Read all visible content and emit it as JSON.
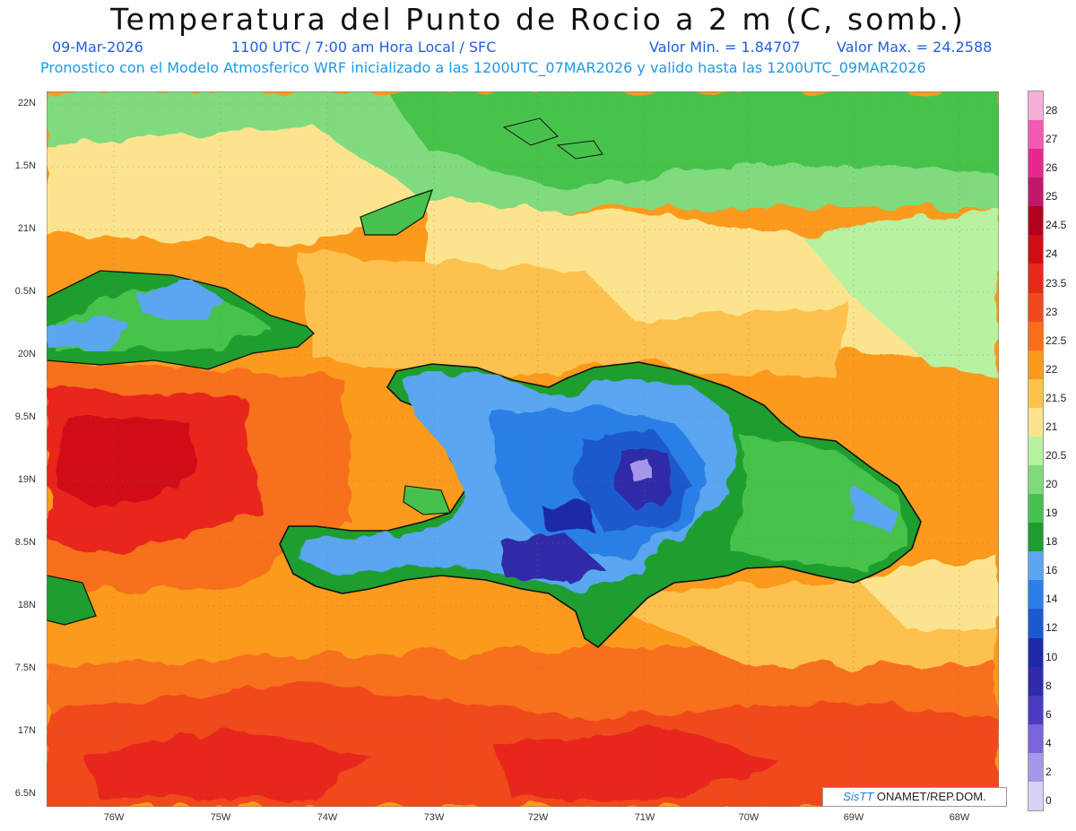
{
  "header": {
    "title": "Temperatura del Punto de Rocio a 2 m (C, somb.)",
    "date": "09-Mar-2026",
    "time": "1100 UTC / 7:00 am Hora Local / SFC",
    "valmin": "Valor Min. = 1.84707",
    "valmax": "Valor Max. = 24.2588",
    "model": "Pronostico con el Modelo Atmosferico WRF inicializado a las 1200UTC_07MAR2026 y valido hasta las  1200UTC_09MAR2026"
  },
  "axes": {
    "lat_labels": [
      "22N",
      "1.5N",
      "21N",
      "0.5N",
      "20N",
      "9.5N",
      "19N",
      "8.5N",
      "18N",
      "7.5N",
      "17N",
      "6.5N"
    ],
    "lon_labels": [
      "76W",
      "75W",
      "74W",
      "73W",
      "72W",
      "71W",
      "70W",
      "69W",
      "68W"
    ]
  },
  "colorbar": {
    "labels": [
      "28",
      "27",
      "26",
      "25",
      "24.5",
      "24",
      "23.5",
      "23",
      "22.5",
      "22",
      "21.5",
      "21",
      "20.5",
      "20",
      "19",
      "18",
      "16",
      "14",
      "12",
      "10",
      "8",
      "6",
      "4",
      "2",
      "0"
    ],
    "colors": [
      "#f5b0d8",
      "#f25bb4",
      "#e4288e",
      "#c0186a",
      "#b0001e",
      "#d00d14",
      "#e8281a",
      "#f04a1e",
      "#f76f1c",
      "#fb9a1c",
      "#fcc24e",
      "#fce48e",
      "#b8f2a0",
      "#7fdb7e",
      "#46c24c",
      "#1e9e2e",
      "#5aa6f0",
      "#2c7fe6",
      "#1a5acc",
      "#1c2aa6",
      "#2f2aa8",
      "#4b3cc0",
      "#7a66da",
      "#a797ea",
      "#d6d2f4"
    ]
  },
  "credit": {
    "brand": "SisTT",
    "text": " ONAMET/REP.DOM."
  }
}
